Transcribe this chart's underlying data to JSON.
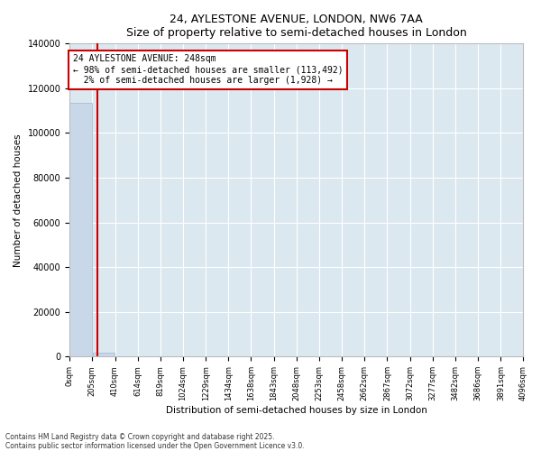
{
  "title1": "24, AYLESTONE AVENUE, LONDON, NW6 7AA",
  "title2": "Size of property relative to semi-detached houses in London",
  "xlabel": "Distribution of semi-detached houses by size in London",
  "ylabel": "Number of detached houses",
  "property_size": 248,
  "pct_smaller": 98,
  "count_smaller": 113492,
  "pct_larger": 2,
  "count_larger": 1928,
  "bar_color": "#c8d8e8",
  "bar_edge_color": "#a0b8d0",
  "vline_color": "#cc0000",
  "annotation_box_color": "#cc0000",
  "background_color": "#dce8f0",
  "footer_text": "Contains HM Land Registry data © Crown copyright and database right 2025.\nContains public sector information licensed under the Open Government Licence v3.0.",
  "bin_edges": [
    0,
    205,
    410,
    614,
    819,
    1024,
    1229,
    1434,
    1638,
    1843,
    2048,
    2253,
    2458,
    2662,
    2867,
    3072,
    3277,
    3482,
    3686,
    3891,
    4096
  ],
  "bin_labels": [
    "0sqm",
    "205sqm",
    "410sqm",
    "614sqm",
    "819sqm",
    "1024sqm",
    "1229sqm",
    "1434sqm",
    "1638sqm",
    "1843sqm",
    "2048sqm",
    "2253sqm",
    "2458sqm",
    "2662sqm",
    "2867sqm",
    "3072sqm",
    "3277sqm",
    "3482sqm",
    "3686sqm",
    "3891sqm",
    "4096sqm"
  ],
  "bar_heights": [
    113492,
    1928,
    0,
    0,
    0,
    0,
    0,
    0,
    0,
    0,
    0,
    0,
    0,
    0,
    0,
    0,
    0,
    0,
    0,
    0
  ],
  "ylim": [
    0,
    140000
  ],
  "yticks": [
    0,
    20000,
    40000,
    60000,
    80000,
    100000,
    120000,
    140000
  ]
}
